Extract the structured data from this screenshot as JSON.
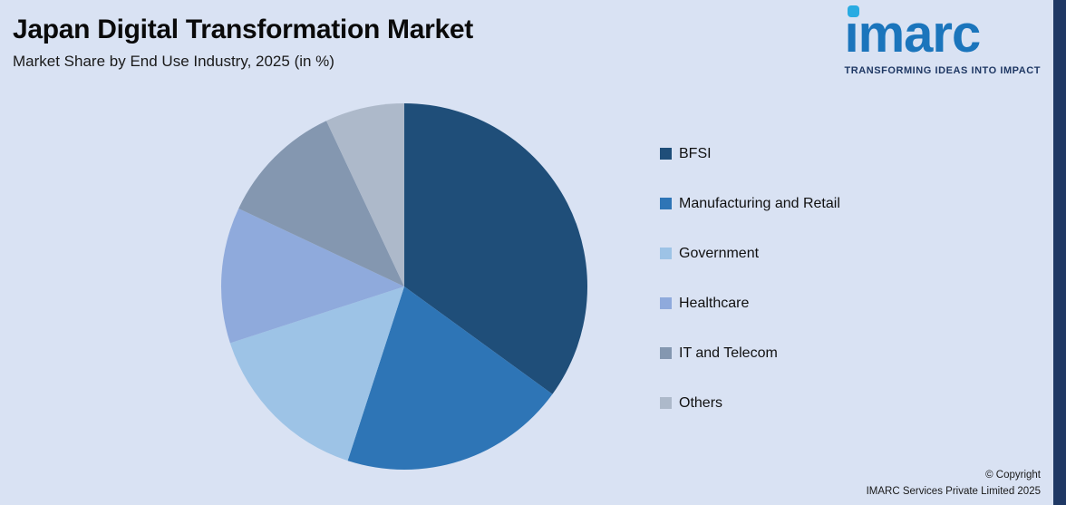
{
  "header": {
    "title": "Japan Digital Transformation Market",
    "subtitle": "Market Share by End Use Industry, 2025 (in %)"
  },
  "logo": {
    "text": "imarc",
    "tagline": "TRANSFORMING IDEAS INTO IMPACT",
    "brand_blue": "#1b75bc",
    "brand_cyan": "#29abe2",
    "tagline_color": "#1f3864"
  },
  "footer": {
    "copyright_line1": "© Copyright",
    "copyright_line2": "IMARC Services Private Limited 2025"
  },
  "theme": {
    "background": "#d9e2f3",
    "accent_bar": "#1f3864",
    "text": "#111111"
  },
  "chart_data": {
    "type": "pie",
    "title": "Japan Digital Transformation Market",
    "subtitle": "Market Share by End Use Industry, 2025 (in %)",
    "unit": "%",
    "categories": [
      "BFSI",
      "Manufacturing and Retail",
      "Government",
      "Healthcare",
      "IT and Telecom",
      "Others"
    ],
    "values": [
      35,
      20,
      15,
      12,
      11,
      7
    ],
    "colors": [
      "#1f4e79",
      "#2e75b6",
      "#9dc3e6",
      "#8faadc",
      "#8497b0",
      "#adb9ca"
    ],
    "legend_position": "right",
    "start_angle_deg": -90,
    "direction": "clockwise",
    "data_labels": false
  }
}
